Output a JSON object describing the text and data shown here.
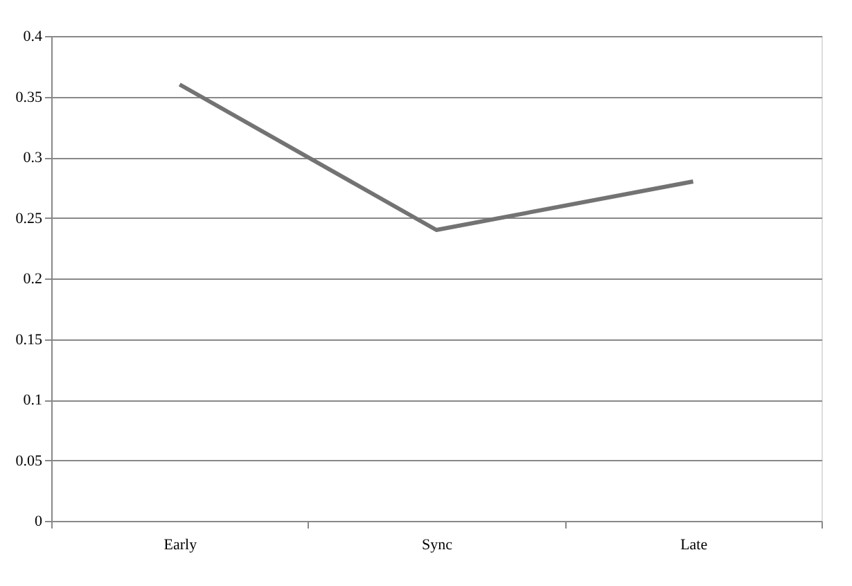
{
  "chart_data": {
    "type": "line",
    "categories": [
      "Early",
      "Sync",
      "Late"
    ],
    "series": [
      {
        "color": "#737373",
        "values": [
          0.36,
          0.24,
          0.28
        ]
      }
    ],
    "ylim": [
      0,
      0.4
    ],
    "yticks": [
      0,
      0.05,
      0.1,
      0.15,
      0.2,
      0.25,
      0.3,
      0.35,
      0.4
    ],
    "grid": "y",
    "marker": "none",
    "line_style": "solid"
  }
}
